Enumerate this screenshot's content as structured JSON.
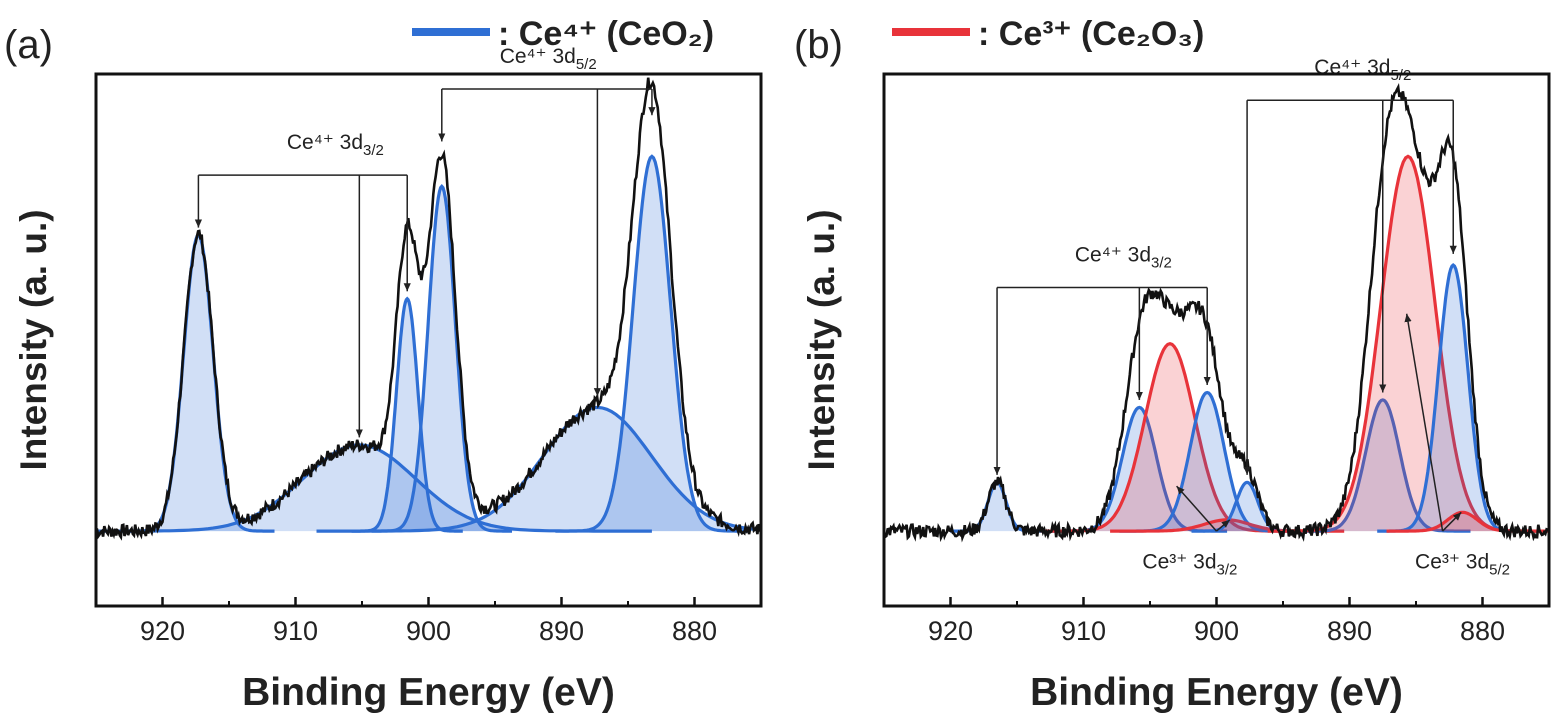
{
  "chart_data": [
    {
      "type": "area",
      "panel_label": "(a)",
      "legend": {
        "label": ": Ce⁴⁺ (CeO₂)",
        "color": "#2f6fd4",
        "placement": "top"
      },
      "xlabel": "Binding Energy (eV)",
      "ylabel": "Intensity (a. u.)",
      "xlim": [
        925,
        875
      ],
      "x_reversed": true,
      "ylim": [
        -0.2,
        1.22
      ],
      "x_ticks": [
        920,
        910,
        900,
        890,
        880
      ],
      "y_ticks_visible": false,
      "baseline_intensity": 0.0,
      "series": [
        {
          "kind": "component",
          "color": "#2f6fd4",
          "values": [
            {
              "center": 917.3,
              "height": 0.79,
              "fwhm": 2.6
            }
          ]
        },
        {
          "kind": "component",
          "color": "#2f6fd4",
          "values": [
            {
              "center": 905.2,
              "height": 0.23,
              "fwhm": 10.0
            }
          ]
        },
        {
          "kind": "component",
          "color": "#2f6fd4",
          "values": [
            {
              "center": 901.6,
              "height": 0.62,
              "fwhm": 1.9
            }
          ]
        },
        {
          "kind": "component",
          "color": "#2f6fd4",
          "values": [
            {
              "center": 899.0,
              "height": 0.92,
              "fwhm": 2.4
            }
          ]
        },
        {
          "kind": "component",
          "color": "#2f6fd4",
          "values": [
            {
              "center": 887.3,
              "height": 0.33,
              "fwhm": 9.6
            }
          ]
        },
        {
          "kind": "component",
          "color": "#2f6fd4",
          "values": [
            {
              "center": 883.2,
              "height": 1.0,
              "fwhm": 3.3
            }
          ]
        }
      ],
      "annotations": [
        {
          "text": "Ce⁴⁺ 3d",
          "subscript": "3/2",
          "x": 907.0,
          "y": 1.02,
          "bracket_x": [
            917.3,
            901.6
          ],
          "bracket_y": 0.95,
          "arrows": [
            {
              "x": 917.3,
              "y_to": 0.81
            },
            {
              "x": 905.2,
              "y_from": 0.95,
              "y_to": 0.25
            },
            {
              "x": 901.6,
              "y_to": 0.64
            }
          ]
        },
        {
          "text": "Ce⁴⁺ 3d",
          "subscript": "5/2",
          "x": 891.0,
          "y": 1.25,
          "bracket_x": [
            899.0,
            883.2
          ],
          "bracket_y": 1.18,
          "arrows": [
            {
              "x": 899.0,
              "y_to": 1.04
            },
            {
              "x": 887.3,
              "y_from": 1.18,
              "y_to": 0.36
            },
            {
              "x": 883.2,
              "y_to": 1.11
            }
          ]
        }
      ]
    },
    {
      "type": "area",
      "panel_label": "(b)",
      "legend": {
        "label": ": Ce³⁺ (Ce₂O₃)",
        "color": "#e8333a",
        "placement": "top"
      },
      "xlabel": "Binding Energy (eV)",
      "ylabel": "Intensity (a. u.)",
      "xlim": [
        925,
        875
      ],
      "x_reversed": true,
      "ylim": [
        -0.2,
        1.22
      ],
      "x_ticks": [
        920,
        910,
        900,
        890,
        880
      ],
      "y_ticks_visible": false,
      "baseline_intensity": 0.0,
      "series": [
        {
          "kind": "component",
          "color": "#2f6fd4",
          "values": [
            {
              "center": 916.5,
              "height": 0.13,
              "fwhm": 1.6
            }
          ]
        },
        {
          "kind": "component",
          "color": "#2f6fd4",
          "values": [
            {
              "center": 905.8,
              "height": 0.33,
              "fwhm": 3.0
            }
          ]
        },
        {
          "kind": "component",
          "color": "#e8333a",
          "values": [
            {
              "center": 903.5,
              "height": 0.5,
              "fwhm": 4.4
            }
          ]
        },
        {
          "kind": "component",
          "color": "#2f6fd4",
          "values": [
            {
              "center": 900.7,
              "height": 0.37,
              "fwhm": 3.0
            }
          ]
        },
        {
          "kind": "component",
          "color": "#e8333a",
          "values": [
            {
              "center": 899.2,
              "height": 0.03,
              "fwhm": 4.0
            }
          ]
        },
        {
          "kind": "component",
          "color": "#2f6fd4",
          "values": [
            {
              "center": 897.7,
              "height": 0.13,
              "fwhm": 1.9
            }
          ]
        },
        {
          "kind": "component",
          "color": "#2f6fd4",
          "values": [
            {
              "center": 887.5,
              "height": 0.35,
              "fwhm": 3.0
            }
          ]
        },
        {
          "kind": "component",
          "color": "#e8333a",
          "values": [
            {
              "center": 885.6,
              "height": 1.0,
              "fwhm": 4.8
            }
          ]
        },
        {
          "kind": "component",
          "color": "#2f6fd4",
          "values": [
            {
              "center": 882.2,
              "height": 0.71,
              "fwhm": 2.6
            }
          ]
        },
        {
          "kind": "component",
          "color": "#e8333a",
          "values": [
            {
              "center": 881.5,
              "height": 0.05,
              "fwhm": 2.6
            }
          ]
        }
      ],
      "annotations": [
        {
          "text": "Ce⁴⁺ 3d",
          "subscript": "3/2",
          "x": 907.0,
          "y": 0.72,
          "bracket_x": [
            916.5,
            900.7
          ],
          "bracket_y": 0.65,
          "arrows": [
            {
              "x": 916.5,
              "y_to": 0.15
            },
            {
              "x": 905.8,
              "y_to": 0.35
            },
            {
              "x": 900.7,
              "y_to": 0.39
            }
          ]
        },
        {
          "text": "Ce⁴⁺ 3d",
          "subscript": "5/2",
          "x": 889.0,
          "y": 1.22,
          "bracket_x": [
            897.7,
            882.2
          ],
          "bracket_y": 1.15,
          "arrows": [
            {
              "x": 897.7,
              "y_to": 0.15
            },
            {
              "x": 887.5,
              "y_from": 1.15,
              "y_to": 0.37
            },
            {
              "x": 882.2,
              "y_to": 0.74
            }
          ]
        },
        {
          "text": "Ce³⁺ 3d",
          "subscript": "3/2",
          "x": 902.0,
          "y": -0.1,
          "arrows": [
            {
              "x_from": 900.0,
              "y_from": 0.0,
              "x": 903.0,
              "y_to": 0.12
            },
            {
              "x_from": 900.0,
              "y_from": 0.0,
              "x": 899.0,
              "y_to": 0.03
            }
          ]
        },
        {
          "text": "Ce³⁺ 3d",
          "subscript": "5/2",
          "x": 881.5,
          "y": -0.1,
          "arrows": [
            {
              "x_from": 883.0,
              "y_from": 0.0,
              "x": 885.7,
              "y_to": 0.58
            },
            {
              "x_from": 883.0,
              "y_from": 0.0,
              "x": 881.6,
              "y_to": 0.05
            }
          ]
        }
      ]
    }
  ]
}
